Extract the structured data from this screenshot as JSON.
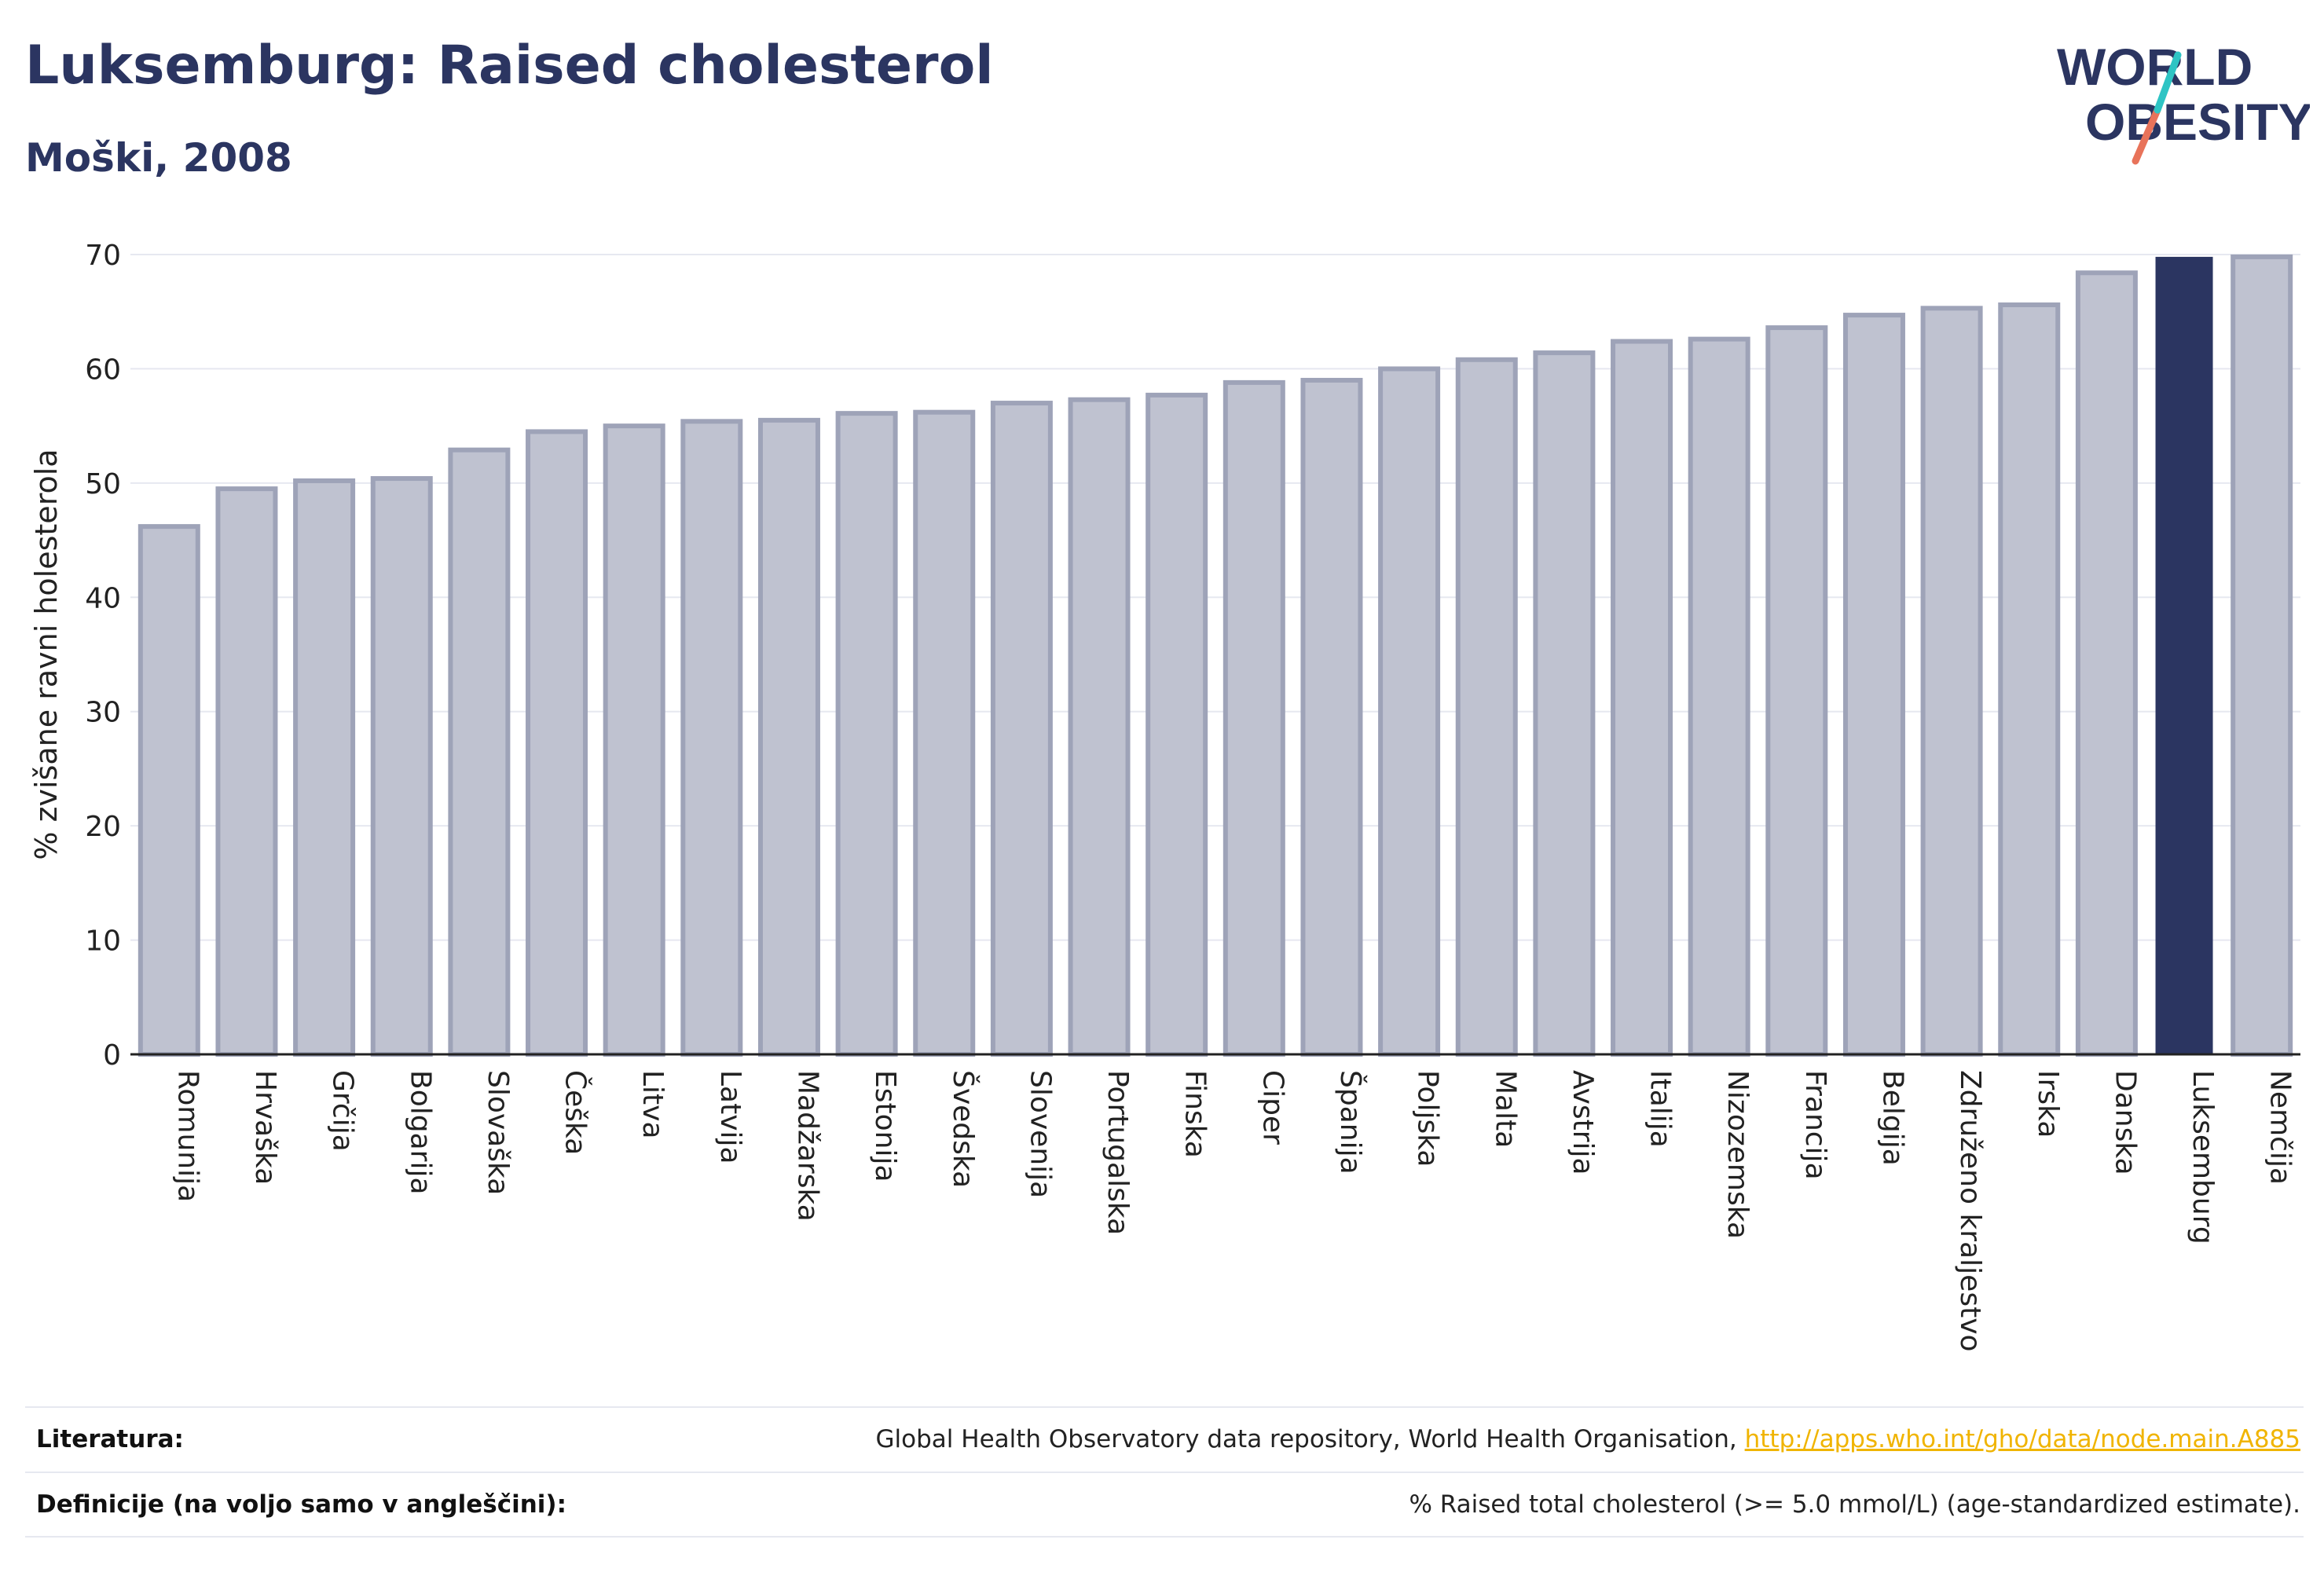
{
  "title": "Luksemburg: Raised cholesterol",
  "subtitle": "Moški, 2008",
  "logo": {
    "line1": "WORLD",
    "line2": "OBESITY",
    "accent_colors": [
      "#2ec4c4",
      "#e8735a"
    ]
  },
  "colors": {
    "bar": "#bfc2d0",
    "bar_border": "#9ea3b8",
    "highlight": "#2b3561",
    "grid": "#e6e8f0",
    "axis": "#222222",
    "title": "#2b3561"
  },
  "chart_data": {
    "type": "bar",
    "categories": [
      "Romunija",
      "Hrvaška",
      "Grčija",
      "Bolgarija",
      "Slovaška",
      "Češka",
      "Litva",
      "Latvija",
      "Madžarska",
      "Estonija",
      "Švedska",
      "Slovenija",
      "Portugalska",
      "Finska",
      "Ciper",
      "Španija",
      "Poljska",
      "Malta",
      "Avstrija",
      "Italija",
      "Nizozemska",
      "Francija",
      "Belgija",
      "Združeno kraljestvo",
      "Irska",
      "Danska",
      "Luksemburg",
      "Nemčija"
    ],
    "values": [
      46.2,
      49.5,
      50.2,
      50.4,
      52.9,
      54.5,
      55.0,
      55.4,
      55.5,
      56.1,
      56.2,
      57.0,
      57.3,
      57.7,
      58.8,
      59.0,
      60.0,
      60.8,
      61.4,
      62.4,
      62.6,
      63.6,
      64.7,
      65.3,
      65.6,
      68.4,
      69.8,
      69.8
    ],
    "highlight": "Luksemburg",
    "ylabel": "% zvišane ravni holesterola",
    "xlabel": "",
    "ylim": [
      0,
      70
    ],
    "yticks": [
      0,
      10,
      20,
      30,
      40,
      50,
      60,
      70
    ],
    "grid": true
  },
  "footer": {
    "source_label": "Literatura:",
    "source_text": "Global Health Observatory data repository, World Health Organisation, ",
    "source_link": "http://apps.who.int/gho/data/node.main.A885",
    "definition_label": "Definicije (na voljo samo v angleščini):",
    "definition_text": "% Raised total cholesterol (>= 5.0 mmol/L) (age-standardized estimate)."
  }
}
